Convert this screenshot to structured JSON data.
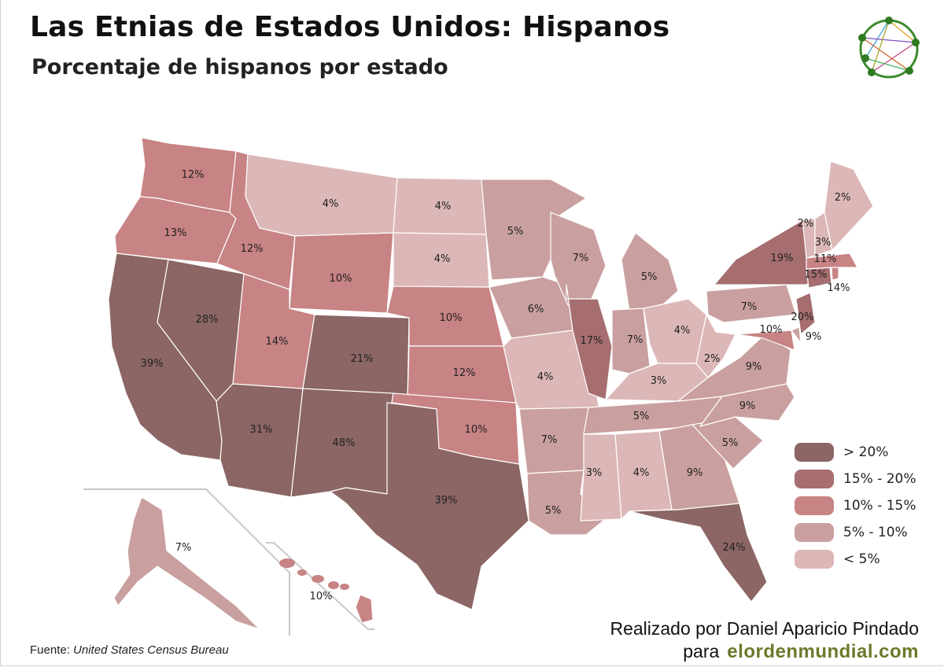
{
  "header": {
    "title": "Las Etnias de Estados Unidos: Hispanos",
    "subtitle": "Porcentaje de hispanos por estado"
  },
  "colors": {
    "gt20": "#8b6664",
    "15to20": "#a66e6f",
    "10to15": "#c88384",
    "5to10": "#c9a09f",
    "lt5": "#dcb7b7"
  },
  "legend": [
    {
      "label": "> 20%",
      "color_key": "gt20"
    },
    {
      "label": "15% - 20%",
      "color_key": "15to20"
    },
    {
      "label": "10% - 15%",
      "color_key": "10to15"
    },
    {
      "label": "5% - 10%",
      "color_key": "5to10"
    },
    {
      "label": "< 5%",
      "color_key": "lt5"
    }
  ],
  "states": {
    "WA": "12%",
    "OR": "13%",
    "CA": "39%",
    "NV": "28%",
    "ID": "12%",
    "MT": "4%",
    "WY": "10%",
    "UT": "14%",
    "AZ": "31%",
    "CO": "21%",
    "NM": "48%",
    "ND": "4%",
    "SD": "4%",
    "NE": "10%",
    "KS": "12%",
    "OK": "10%",
    "TX": "39%",
    "MN": "5%",
    "IA": "6%",
    "MO": "4%",
    "AR": "7%",
    "LA": "5%",
    "WI": "7%",
    "IL": "17%",
    "MI": "5%",
    "IN": "7%",
    "OH": "4%",
    "KY": "3%",
    "TN": "5%",
    "MS": "3%",
    "AL": "4%",
    "GA": "9%",
    "FL": "24%",
    "SC": "5%",
    "NC": "9%",
    "VA": "9%",
    "WV": "2%",
    "PA": "7%",
    "NY": "19%",
    "NJ": "20%",
    "DE": "9%",
    "MD": "10%",
    "CT": "15%",
    "RI": "14%",
    "MA": "11%",
    "VT": "2%",
    "NH": "3%",
    "ME": "2%",
    "AK": "7%",
    "HI": "10%"
  },
  "footer": {
    "credit": "Realizado por Daniel Aparicio Pindado",
    "para": "para",
    "site": "elordenmundial.com",
    "source_label": "Fuente:",
    "source_value": "United States Census Bureau"
  }
}
